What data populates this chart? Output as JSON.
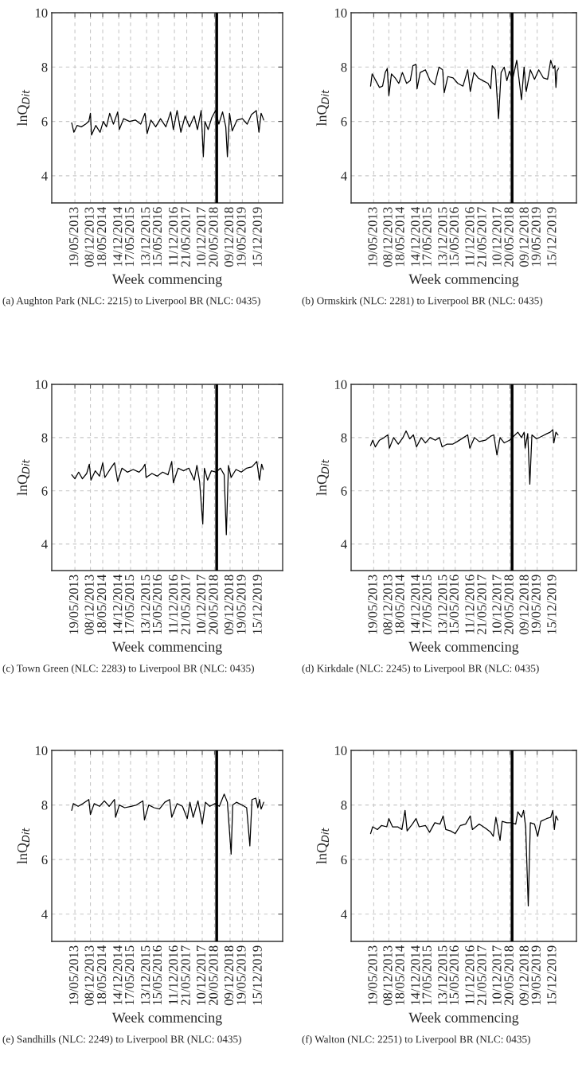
{
  "chart_data": [
    {
      "type": "line",
      "xlabel": "Week commencing",
      "ylabel": "lnQ$_{Dit}$",
      "annotations": [
        "(a) Aughton Park (NLC: 2215) to Liverpool BR (NLC: 0435)"
      ],
      "xlim": [
        "2012-07-20",
        "2020-10-27"
      ],
      "xticks": [
        {
          "value": "2013-05-19",
          "label": "19/05/2013"
        },
        {
          "value": "2013-12-08",
          "label": "08/12/2013"
        },
        {
          "value": "2014-05-18",
          "label": "18/05/2014"
        },
        {
          "value": "2014-12-14",
          "label": "14/12/2014"
        },
        {
          "value": "2015-05-17",
          "label": "17/05/2015"
        },
        {
          "value": "2015-12-13",
          "label": "13/12/2015"
        },
        {
          "value": "2016-05-15",
          "label": "15/05/2016"
        },
        {
          "value": "2016-12-11",
          "label": "11/12/2016"
        },
        {
          "value": "2017-05-21",
          "label": "21/05/2017"
        },
        {
          "value": "2017-12-10",
          "label": "10/12/2017"
        },
        {
          "value": "2018-05-20",
          "label": "20/05/2018"
        },
        {
          "value": "2018-12-09",
          "label": "09/12/2018"
        },
        {
          "value": "2019-05-19",
          "label": "19/05/2019"
        },
        {
          "value": "2019-12-15",
          "label": "15/12/2019"
        }
      ],
      "ylim": [
        3,
        10
      ],
      "yticks": [
        4,
        6,
        8,
        10
      ],
      "grid": true,
      "ref_lines": [
        {
          "axis": "x",
          "value": "2018-06-17",
          "color": "#000000"
        }
      ],
      "series": [
        {
          "color": "#000000",
          "x": [
            "2013-04-07",
            "2013-05-05",
            "2013-06-16",
            "2013-08-11",
            "2013-10-06",
            "2013-11-17",
            "2013-12-08",
            "2013-12-22",
            "2014-02-16",
            "2014-04-13",
            "2014-05-25",
            "2014-07-06",
            "2014-08-17",
            "2014-10-05",
            "2014-11-30",
            "2014-12-21",
            "2015-02-15",
            "2015-05-03",
            "2015-07-19",
            "2015-09-27",
            "2015-11-22",
            "2015-12-20",
            "2016-02-07",
            "2016-04-10",
            "2016-06-12",
            "2016-08-21",
            "2016-10-23",
            "2016-11-27",
            "2017-01-15",
            "2017-03-05",
            "2017-04-30",
            "2017-06-25",
            "2017-08-27",
            "2017-10-08",
            "2017-11-26",
            "2017-12-24",
            "2018-01-14",
            "2018-02-25",
            "2018-04-15",
            "2018-06-03",
            "2018-07-15",
            "2018-09-02",
            "2018-10-14",
            "2018-11-04",
            "2018-12-02",
            "2019-01-06",
            "2019-03-10",
            "2019-05-19",
            "2019-07-21",
            "2019-09-15",
            "2019-11-17",
            "2019-12-22",
            "2020-01-19",
            "2020-02-23"
          ],
          "values": [
            5.95,
            5.6,
            5.85,
            5.8,
            5.9,
            6.0,
            6.3,
            5.5,
            5.85,
            5.6,
            6.0,
            5.8,
            6.3,
            5.9,
            6.35,
            5.7,
            6.1,
            6.0,
            6.05,
            5.9,
            6.3,
            5.55,
            6.05,
            5.8,
            6.1,
            5.8,
            6.35,
            5.7,
            6.4,
            5.6,
            6.2,
            5.8,
            6.2,
            5.7,
            6.4,
            4.7,
            6.0,
            5.7,
            6.15,
            6.4,
            5.9,
            6.35,
            5.8,
            4.7,
            6.3,
            5.65,
            6.05,
            6.1,
            5.9,
            6.25,
            6.4,
            5.6,
            6.3,
            6.05
          ]
        }
      ]
    },
    {
      "type": "line",
      "xlabel": "Week commencing",
      "ylabel": "lnQ$_{Dit}$",
      "annotations": [
        "(b) Ormskirk (NLC: 2281) to Liverpool BR (NLC: 0435)"
      ],
      "xlim": [
        "2012-07-20",
        "2020-10-27"
      ],
      "xticks": [
        {
          "value": "2013-05-19",
          "label": "19/05/2013"
        },
        {
          "value": "2013-12-08",
          "label": "08/12/2013"
        },
        {
          "value": "2014-05-18",
          "label": "18/05/2014"
        },
        {
          "value": "2014-12-14",
          "label": "14/12/2014"
        },
        {
          "value": "2015-05-17",
          "label": "17/05/2015"
        },
        {
          "value": "2015-12-13",
          "label": "13/12/2015"
        },
        {
          "value": "2016-05-15",
          "label": "15/05/2016"
        },
        {
          "value": "2016-12-11",
          "label": "11/12/2016"
        },
        {
          "value": "2017-05-21",
          "label": "21/05/2017"
        },
        {
          "value": "2017-12-10",
          "label": "10/12/2017"
        },
        {
          "value": "2018-05-20",
          "label": "20/05/2018"
        },
        {
          "value": "2018-12-09",
          "label": "09/12/2018"
        },
        {
          "value": "2019-05-19",
          "label": "19/05/2019"
        },
        {
          "value": "2019-12-15",
          "label": "15/12/2019"
        }
      ],
      "ylim": [
        3,
        10
      ],
      "yticks": [
        4,
        6,
        8,
        10
      ],
      "grid": true,
      "ref_lines": [
        {
          "axis": "x",
          "value": "2018-06-17",
          "color": "#000000"
        }
      ],
      "series": [
        {
          "color": "#000000",
          "x": [
            "2013-04-07",
            "2013-04-28",
            "2013-06-16",
            "2013-08-04",
            "2013-09-15",
            "2013-10-20",
            "2013-11-17",
            "2013-12-08",
            "2014-01-12",
            "2014-03-02",
            "2014-04-20",
            "2014-06-08",
            "2014-08-03",
            "2014-09-21",
            "2014-10-26",
            "2014-12-07",
            "2014-12-21",
            "2015-02-01",
            "2015-04-12",
            "2015-06-14",
            "2015-08-16",
            "2015-10-11",
            "2015-11-29",
            "2015-12-20",
            "2016-02-07",
            "2016-04-17",
            "2016-06-19",
            "2016-08-28",
            "2016-10-30",
            "2016-12-04",
            "2017-01-22",
            "2017-03-19",
            "2017-05-21",
            "2017-07-30",
            "2017-09-03",
            "2017-09-24",
            "2017-11-05",
            "2017-12-17",
            "2018-01-21",
            "2018-03-04",
            "2018-04-08",
            "2018-05-13",
            "2018-06-24",
            "2018-08-19",
            "2018-10-21",
            "2018-11-25",
            "2018-12-23",
            "2019-02-17",
            "2019-04-14",
            "2019-06-09",
            "2019-08-11",
            "2019-10-06",
            "2019-11-17",
            "2019-12-22",
            "2020-01-12",
            "2020-01-26",
            "2020-02-09",
            "2020-03-01"
          ],
          "values": [
            7.3,
            7.75,
            7.5,
            7.25,
            7.3,
            7.8,
            7.95,
            6.95,
            7.75,
            7.6,
            7.4,
            7.8,
            7.4,
            7.5,
            8.05,
            8.1,
            7.2,
            7.8,
            7.9,
            7.5,
            7.35,
            8.0,
            7.9,
            7.05,
            7.65,
            7.6,
            7.4,
            7.3,
            7.9,
            7.1,
            7.8,
            7.6,
            7.5,
            7.4,
            7.2,
            8.05,
            7.9,
            6.1,
            7.8,
            8.0,
            7.5,
            7.85,
            7.55,
            8.25,
            6.8,
            8.0,
            7.1,
            7.9,
            7.55,
            7.9,
            7.6,
            7.55,
            8.25,
            7.95,
            8.05,
            7.25,
            7.85,
            7.95
          ]
        }
      ]
    },
    {
      "type": "line",
      "xlabel": "Week commencing",
      "ylabel": "lnQ$_{Dit}$",
      "annotations": [
        "(c) Town Green (NLC: 2283) to Liverpool BR (NLC: 0435)"
      ],
      "xlim": [
        "2012-07-20",
        "2020-10-27"
      ],
      "xticks": [
        {
          "value": "2013-05-19",
          "label": "19/05/2013"
        },
        {
          "value": "2013-12-08",
          "label": "08/12/2013"
        },
        {
          "value": "2014-05-18",
          "label": "18/05/2014"
        },
        {
          "value": "2014-12-14",
          "label": "14/12/2014"
        },
        {
          "value": "2015-05-17",
          "label": "17/05/2015"
        },
        {
          "value": "2015-12-13",
          "label": "13/12/2015"
        },
        {
          "value": "2016-05-15",
          "label": "15/05/2016"
        },
        {
          "value": "2016-12-11",
          "label": "11/12/2016"
        },
        {
          "value": "2017-05-21",
          "label": "21/05/2017"
        },
        {
          "value": "2017-12-10",
          "label": "10/12/2017"
        },
        {
          "value": "2018-05-20",
          "label": "20/05/2018"
        },
        {
          "value": "2018-12-09",
          "label": "09/12/2018"
        },
        {
          "value": "2019-05-19",
          "label": "19/05/2019"
        },
        {
          "value": "2019-12-15",
          "label": "15/12/2019"
        }
      ],
      "ylim": [
        3,
        10
      ],
      "yticks": [
        4,
        6,
        8,
        10
      ],
      "grid": true,
      "ref_lines": [
        {
          "axis": "x",
          "value": "2018-06-17",
          "color": "#000000"
        }
      ],
      "series": [
        {
          "color": "#000000",
          "x": [
            "2013-04-07",
            "2013-05-19",
            "2013-07-07",
            "2013-08-25",
            "2013-10-20",
            "2013-11-24",
            "2013-12-15",
            "2014-02-09",
            "2014-04-06",
            "2014-05-18",
            "2014-06-15",
            "2014-08-31",
            "2014-10-19",
            "2014-11-30",
            "2015-01-25",
            "2015-04-05",
            "2015-06-21",
            "2015-09-06",
            "2015-10-25",
            "2015-11-22",
            "2015-12-06",
            "2016-02-21",
            "2016-05-01",
            "2016-07-10",
            "2016-09-18",
            "2016-11-06",
            "2016-11-27",
            "2017-01-29",
            "2017-04-09",
            "2017-06-18",
            "2017-08-27",
            "2017-10-01",
            "2017-11-05",
            "2017-12-17",
            "2018-01-07",
            "2018-02-18",
            "2018-04-08",
            "2018-06-10",
            "2018-08-05",
            "2018-09-23",
            "2018-10-21",
            "2018-11-18",
            "2018-12-23",
            "2019-02-24",
            "2019-05-05",
            "2019-07-14",
            "2019-09-22",
            "2019-11-24",
            "2019-12-29",
            "2020-01-26",
            "2020-02-16"
          ],
          "values": [
            6.6,
            6.45,
            6.7,
            6.45,
            6.65,
            7.0,
            6.4,
            6.75,
            6.55,
            7.05,
            6.5,
            6.85,
            7.05,
            6.35,
            6.85,
            6.7,
            6.8,
            6.7,
            6.85,
            7.0,
            6.5,
            6.65,
            6.55,
            6.7,
            6.6,
            7.1,
            6.3,
            6.85,
            6.75,
            6.85,
            6.4,
            6.95,
            6.35,
            4.75,
            6.85,
            6.4,
            6.75,
            6.7,
            6.85,
            6.6,
            4.35,
            6.95,
            6.5,
            6.8,
            6.7,
            6.85,
            6.9,
            7.1,
            6.4,
            7.0,
            6.8
          ]
        }
      ]
    },
    {
      "type": "line",
      "xlabel": "Week commencing",
      "ylabel": "lnQ$_{Dit}$",
      "annotations": [
        "(d) Kirkdale (NLC: 2245) to Liverpool BR (NLC: 0435)"
      ],
      "xlim": [
        "2012-07-20",
        "2020-10-27"
      ],
      "xticks": [
        {
          "value": "2013-05-19",
          "label": "19/05/2013"
        },
        {
          "value": "2013-12-08",
          "label": "08/12/2013"
        },
        {
          "value": "2014-05-18",
          "label": "18/05/2014"
        },
        {
          "value": "2014-12-14",
          "label": "14/12/2014"
        },
        {
          "value": "2015-05-17",
          "label": "17/05/2015"
        },
        {
          "value": "2015-12-13",
          "label": "13/12/2015"
        },
        {
          "value": "2016-05-15",
          "label": "15/05/2016"
        },
        {
          "value": "2016-12-11",
          "label": "11/12/2016"
        },
        {
          "value": "2017-05-21",
          "label": "21/05/2017"
        },
        {
          "value": "2017-12-10",
          "label": "10/12/2017"
        },
        {
          "value": "2018-05-20",
          "label": "20/05/2018"
        },
        {
          "value": "2018-12-09",
          "label": "09/12/2018"
        },
        {
          "value": "2019-05-19",
          "label": "19/05/2019"
        },
        {
          "value": "2019-12-15",
          "label": "15/12/2019"
        }
      ],
      "ylim": [
        3,
        10
      ],
      "yticks": [
        4,
        6,
        8,
        10
      ],
      "grid": true,
      "ref_lines": [
        {
          "axis": "x",
          "value": "2018-06-17",
          "color": "#000000"
        }
      ],
      "series": [
        {
          "color": "#000000",
          "x": [
            "2013-04-07",
            "2013-05-05",
            "2013-06-09",
            "2013-08-04",
            "2013-10-06",
            "2013-11-24",
            "2013-12-15",
            "2014-02-09",
            "2014-04-13",
            "2014-06-15",
            "2014-07-27",
            "2014-09-14",
            "2014-11-02",
            "2014-12-14",
            "2015-02-15",
            "2015-04-12",
            "2015-06-14",
            "2015-08-23",
            "2015-10-18",
            "2015-11-22",
            "2016-01-24",
            "2016-04-10",
            "2016-06-12",
            "2016-09-04",
            "2016-10-30",
            "2016-11-27",
            "2017-01-29",
            "2017-04-02",
            "2017-06-25",
            "2017-09-03",
            "2017-10-15",
            "2017-11-26",
            "2018-01-07",
            "2018-03-04",
            "2018-05-13",
            "2018-07-08",
            "2018-09-02",
            "2018-10-21",
            "2018-11-25",
            "2018-12-09",
            "2019-01-13",
            "2019-02-10",
            "2019-03-10",
            "2019-05-12",
            "2019-07-21",
            "2019-09-29",
            "2019-11-10",
            "2019-12-15",
            "2019-12-29",
            "2020-01-26",
            "2020-02-23"
          ],
          "values": [
            7.7,
            7.9,
            7.65,
            7.9,
            8.0,
            8.1,
            7.6,
            8.0,
            7.75,
            8.0,
            8.25,
            7.95,
            8.1,
            7.65,
            8.0,
            7.8,
            8.0,
            7.9,
            8.0,
            7.65,
            7.75,
            7.75,
            7.85,
            8.0,
            8.1,
            7.6,
            8.0,
            7.85,
            7.9,
            8.05,
            8.1,
            7.35,
            8.0,
            7.8,
            7.9,
            8.05,
            8.2,
            8.0,
            8.2,
            7.6,
            8.15,
            6.25,
            8.1,
            7.95,
            8.05,
            8.15,
            8.2,
            8.3,
            7.8,
            8.2,
            8.1
          ]
        }
      ]
    },
    {
      "type": "line",
      "xlabel": "Week commencing",
      "ylabel": "lnQ$_{Dit}$",
      "annotations": [
        "(e) Sandhills (NLC: 2249) to Liverpool BR (NLC: 0435)"
      ],
      "xlim": [
        "2012-07-20",
        "2020-10-27"
      ],
      "xticks": [
        {
          "value": "2013-05-19",
          "label": "19/05/2013"
        },
        {
          "value": "2013-12-08",
          "label": "08/12/2013"
        },
        {
          "value": "2014-05-18",
          "label": "18/05/2014"
        },
        {
          "value": "2014-12-14",
          "label": "14/12/2014"
        },
        {
          "value": "2015-05-17",
          "label": "17/05/2015"
        },
        {
          "value": "2015-12-13",
          "label": "13/12/2015"
        },
        {
          "value": "2016-05-15",
          "label": "15/05/2016"
        },
        {
          "value": "2016-12-11",
          "label": "11/12/2016"
        },
        {
          "value": "2017-05-21",
          "label": "21/05/2017"
        },
        {
          "value": "2017-12-10",
          "label": "10/12/2017"
        },
        {
          "value": "2018-05-20",
          "label": "20/05/2018"
        },
        {
          "value": "2018-12-09",
          "label": "09/12/2018"
        },
        {
          "value": "2019-05-19",
          "label": "19/05/2019"
        },
        {
          "value": "2019-12-15",
          "label": "15/12/2019"
        }
      ],
      "ylim": [
        3,
        10
      ],
      "yticks": [
        4,
        6,
        8,
        10
      ],
      "grid": true,
      "ref_lines": [
        {
          "axis": "x",
          "value": "2018-06-17",
          "color": "#000000"
        }
      ],
      "series": [
        {
          "color": "#000000",
          "x": [
            "2013-04-07",
            "2013-04-28",
            "2013-06-30",
            "2013-09-01",
            "2013-11-17",
            "2013-12-08",
            "2014-01-26",
            "2014-04-06",
            "2014-06-08",
            "2014-08-10",
            "2014-10-19",
            "2014-11-02",
            "2014-12-21",
            "2015-03-01",
            "2015-05-24",
            "2015-08-02",
            "2015-10-25",
            "2015-11-15",
            "2016-01-10",
            "2016-03-20",
            "2016-05-29",
            "2016-08-07",
            "2016-10-09",
            "2016-11-06",
            "2017-01-15",
            "2017-03-26",
            "2017-05-28",
            "2017-07-02",
            "2017-08-13",
            "2017-10-15",
            "2017-12-10",
            "2018-01-21",
            "2018-03-18",
            "2018-05-27",
            "2018-07-22",
            "2018-09-23",
            "2018-11-04",
            "2018-12-23",
            "2019-01-13",
            "2019-03-03",
            "2019-05-12",
            "2019-07-14",
            "2019-08-25",
            "2019-09-22",
            "2019-11-10",
            "2019-12-08",
            "2019-12-29",
            "2020-01-19",
            "2020-02-23"
          ],
          "values": [
            7.8,
            8.05,
            7.95,
            8.05,
            8.2,
            7.65,
            8.05,
            7.95,
            8.15,
            7.95,
            8.2,
            7.55,
            8.0,
            7.9,
            7.95,
            8.0,
            8.15,
            7.45,
            8.0,
            7.9,
            7.85,
            8.1,
            8.2,
            7.55,
            8.05,
            7.95,
            7.5,
            8.1,
            7.55,
            8.15,
            7.3,
            8.1,
            7.95,
            8.05,
            7.95,
            8.4,
            8.1,
            6.2,
            8.0,
            8.1,
            8.0,
            7.9,
            6.5,
            8.2,
            8.25,
            7.9,
            8.2,
            7.85,
            8.1
          ]
        }
      ]
    },
    {
      "type": "line",
      "xlabel": "Week commencing",
      "ylabel": "lnQ$_{Dit}$",
      "annotations": [
        "(f) Walton (NLC: 2251) to Liverpool BR (NLC: 0435)"
      ],
      "xlim": [
        "2012-07-20",
        "2020-10-27"
      ],
      "xticks": [
        {
          "value": "2013-05-19",
          "label": "19/05/2013"
        },
        {
          "value": "2013-12-08",
          "label": "08/12/2013"
        },
        {
          "value": "2014-05-18",
          "label": "18/05/2014"
        },
        {
          "value": "2014-12-14",
          "label": "14/12/2014"
        },
        {
          "value": "2015-05-17",
          "label": "17/05/2015"
        },
        {
          "value": "2015-12-13",
          "label": "13/12/2015"
        },
        {
          "value": "2016-05-15",
          "label": "15/05/2016"
        },
        {
          "value": "2016-12-11",
          "label": "11/12/2016"
        },
        {
          "value": "2017-05-21",
          "label": "21/05/2017"
        },
        {
          "value": "2017-12-10",
          "label": "10/12/2017"
        },
        {
          "value": "2018-05-20",
          "label": "20/05/2018"
        },
        {
          "value": "2018-12-09",
          "label": "09/12/2018"
        },
        {
          "value": "2019-05-19",
          "label": "19/05/2019"
        },
        {
          "value": "2019-12-15",
          "label": "15/12/2019"
        }
      ],
      "ylim": [
        3,
        10
      ],
      "yticks": [
        4,
        6,
        8,
        10
      ],
      "grid": true,
      "ref_lines": [
        {
          "axis": "x",
          "value": "2018-06-17",
          "color": "#000000"
        }
      ],
      "series": [
        {
          "color": "#000000",
          "x": [
            "2013-04-07",
            "2013-05-05",
            "2013-07-07",
            "2013-09-01",
            "2013-11-10",
            "2013-12-08",
            "2014-01-26",
            "2014-04-06",
            "2014-06-01",
            "2014-07-13",
            "2014-08-10",
            "2014-10-19",
            "2014-12-07",
            "2015-01-18",
            "2015-04-12",
            "2015-06-07",
            "2015-08-16",
            "2015-10-25",
            "2015-12-06",
            "2016-01-10",
            "2016-03-13",
            "2016-05-15",
            "2016-07-24",
            "2016-10-02",
            "2016-12-04",
            "2017-01-01",
            "2017-04-02",
            "2017-06-25",
            "2017-09-03",
            "2017-10-08",
            "2017-11-12",
            "2018-01-07",
            "2018-02-04",
            "2018-04-08",
            "2018-06-10",
            "2018-08-05",
            "2018-09-02",
            "2018-10-21",
            "2018-11-18",
            "2018-12-16",
            "2019-01-20",
            "2019-02-17",
            "2019-04-14",
            "2019-05-26",
            "2019-07-07",
            "2019-09-22",
            "2019-11-17",
            "2019-12-15",
            "2020-01-05",
            "2020-01-26",
            "2020-02-23"
          ],
          "values": [
            6.95,
            7.2,
            7.1,
            7.25,
            7.2,
            7.5,
            7.2,
            7.2,
            7.1,
            7.8,
            7.05,
            7.3,
            7.5,
            7.2,
            7.25,
            7.0,
            7.35,
            7.3,
            7.6,
            7.1,
            7.05,
            6.95,
            7.25,
            7.3,
            7.6,
            7.1,
            7.3,
            7.15,
            7.0,
            6.85,
            7.55,
            6.7,
            7.4,
            7.35,
            7.35,
            7.3,
            7.75,
            7.55,
            7.8,
            7.2,
            4.3,
            7.35,
            7.3,
            6.85,
            7.4,
            7.5,
            7.55,
            7.8,
            7.1,
            7.6,
            7.45
          ]
        }
      ]
    }
  ]
}
